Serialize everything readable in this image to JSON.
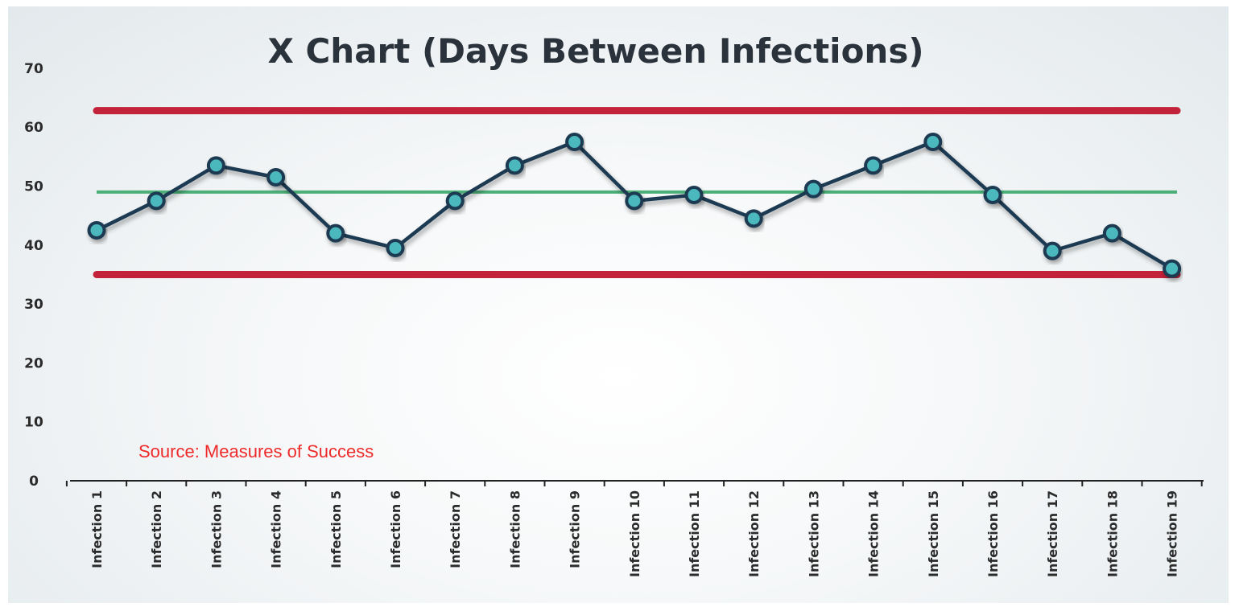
{
  "chart_data": {
    "type": "line",
    "title": "X Chart (Days Between Infections)",
    "categories": [
      "Infection 1",
      "Infection 2",
      "Infection 3",
      "Infection 4",
      "Infection 5",
      "Infection 6",
      "Infection 7",
      "Infection 8",
      "Infection 9",
      "Infection 10",
      "Infection 11",
      "Infection 12",
      "Infection 13",
      "Infection 14",
      "Infection 15",
      "Infection 16",
      "Infection 17",
      "Infection 18",
      "Infection 19"
    ],
    "values": [
      42.5,
      47.5,
      53.5,
      51.5,
      42,
      39.5,
      47.5,
      53.5,
      57.5,
      47.5,
      48.5,
      44.5,
      49.5,
      53.5,
      57.5,
      48.5,
      39,
      42,
      36
    ],
    "yticks": [
      "0",
      "10",
      "20",
      "30",
      "40",
      "50",
      "60",
      "70"
    ],
    "ylim": [
      0,
      70
    ],
    "reference_lines": {
      "upper_limit": 62.8,
      "average": 49,
      "lower_limit": 35
    },
    "annotation": "Source: Measures of Success",
    "colors": {
      "series_line": "#1d3a52",
      "marker_fill": "#4bb8be",
      "limit_line": "#c2223a",
      "average_line": "#4caf78",
      "source_text": "#ee2b2b",
      "title_text": "#2a323b"
    },
    "grid": false,
    "legend": "none"
  }
}
